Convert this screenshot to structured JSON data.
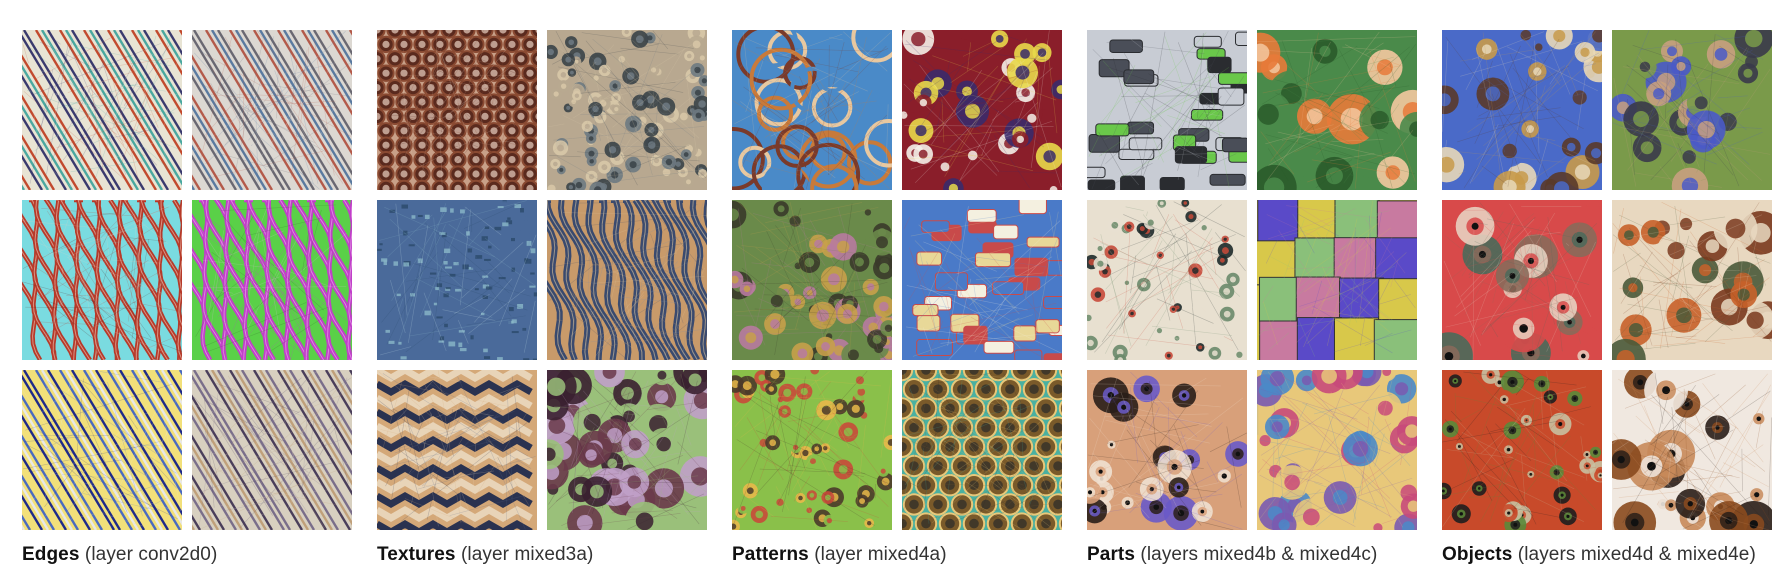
{
  "groups": [
    {
      "title": "Edges",
      "subtitle": "(layer conv2d0)",
      "tiles": [
        {
          "name": "edges-diagonal-rainbow-stripes",
          "style": "stripes",
          "colors": [
            "#3a3a6e",
            "#e8e4d4",
            "#c24a2e",
            "#4aa8a0"
          ]
        },
        {
          "name": "edges-fine-grey-stripes",
          "style": "stripes",
          "colors": [
            "#6a6872",
            "#dcd8d2",
            "#b45a4a",
            "#5a7aa0"
          ]
        },
        {
          "name": "edges-red-cyan-waves",
          "style": "waves",
          "colors": [
            "#b63a2a",
            "#7adbe0",
            "#5a1e18",
            "#f0d0c0"
          ]
        },
        {
          "name": "edges-magenta-green-waves",
          "style": "waves",
          "colors": [
            "#c040c8",
            "#5ad048",
            "#30602a",
            "#f0b0f0"
          ]
        },
        {
          "name": "edges-blue-yellow-stripes",
          "style": "stripes",
          "colors": [
            "#1e2a8a",
            "#f2e07a",
            "#4a6ac0",
            "#e8e8e8"
          ]
        },
        {
          "name": "edges-grey-purple-stripes",
          "style": "stripes",
          "colors": [
            "#7a6e8a",
            "#d8d0c0",
            "#4a3e5a",
            "#c0a07a"
          ]
        }
      ]
    },
    {
      "title": "Textures",
      "subtitle": "(layer mixed3a)",
      "tiles": [
        {
          "name": "textures-brown-mesh",
          "style": "cells",
          "colors": [
            "#5a2a1e",
            "#c8a088",
            "#8a4a32",
            "#e8d0c0"
          ]
        },
        {
          "name": "textures-grey-bumps",
          "style": "dots",
          "colors": [
            "#6e7a82",
            "#b8a890",
            "#3a4248",
            "#d8c8a8"
          ]
        },
        {
          "name": "textures-pale-blue-speckle",
          "style": "speckle",
          "colors": [
            "#cfe8ee",
            "#4a6a9a",
            "#8ab8c8",
            "#2a4a6a"
          ]
        },
        {
          "name": "textures-blue-ridges",
          "style": "ridges",
          "colors": [
            "#3a4a6e",
            "#c89a6a",
            "#7a8aa8",
            "#e0c8a0"
          ]
        },
        {
          "name": "textures-navy-tan-zigzag",
          "style": "zigzag",
          "colors": [
            "#2a3250",
            "#d4a878",
            "#5a6a8a",
            "#e8d4b8"
          ]
        },
        {
          "name": "textures-multicolor-blur",
          "style": "blobs",
          "colors": [
            "#6a3a4a",
            "#9ac07a",
            "#c0a0c8",
            "#3a2030"
          ]
        }
      ]
    },
    {
      "title": "Patterns",
      "subtitle": "(layer mixed4a)",
      "tiles": [
        {
          "name": "patterns-woven-loops",
          "style": "loops",
          "colors": [
            "#c87a3a",
            "#4a8ac8",
            "#e8c8a0",
            "#7a3a2a"
          ]
        },
        {
          "name": "patterns-flower-dots",
          "style": "flowers",
          "colors": [
            "#e8d84a",
            "#8a1e2a",
            "#3a2a6a",
            "#f4f0e8"
          ]
        },
        {
          "name": "patterns-bubble-cluster",
          "style": "bubbles",
          "colors": [
            "#c8a04a",
            "#6a8a4a",
            "#b87aa0",
            "#3a3a2a"
          ]
        },
        {
          "name": "patterns-paper-labels",
          "style": "labels",
          "colors": [
            "#e8d898",
            "#4a7ac8",
            "#c84a4a",
            "#f4f0e0"
          ]
        },
        {
          "name": "patterns-eyes-rings",
          "style": "rings",
          "colors": [
            "#4a3a2a",
            "#8ac04a",
            "#e8b84a",
            "#c84a3a"
          ]
        },
        {
          "name": "patterns-hex-cells",
          "style": "hex",
          "colors": [
            "#7a5a2a",
            "#4ab0a0",
            "#e8c87a",
            "#2a2a2a"
          ]
        }
      ]
    },
    {
      "title": "Parts",
      "subtitle": "(layers mixed4b & mixed4c)",
      "tiles": [
        {
          "name": "parts-gadget-buttons",
          "style": "buttons",
          "colors": [
            "#4a4e58",
            "#c8ccd4",
            "#2a2c30",
            "#6ac84a"
          ]
        },
        {
          "name": "parts-orange-flowers",
          "style": "petals",
          "colors": [
            "#e87a3a",
            "#4a8a4a",
            "#f4c8a0",
            "#2a5a2a"
          ]
        },
        {
          "name": "parts-bead-chains",
          "style": "beads",
          "colors": [
            "#1e2a2a",
            "#e8e0d0",
            "#c84a3a",
            "#6a8a6a"
          ]
        },
        {
          "name": "parts-fabric-patches",
          "style": "patches",
          "colors": [
            "#5a4ac8",
            "#d8c84a",
            "#8ac07a",
            "#c87aa0"
          ]
        },
        {
          "name": "parts-animal-noses",
          "style": "noses",
          "colors": [
            "#2a1e18",
            "#d8a07a",
            "#6a5ac8",
            "#f0e0d0"
          ]
        },
        {
          "name": "parts-glass-spheres",
          "style": "spheres",
          "colors": [
            "#7a5ab0",
            "#e8c87a",
            "#4a8ac8",
            "#c84a7a"
          ]
        }
      ]
    },
    {
      "title": "Objects",
      "subtitle": "(layers mixed4d & mixed4e)",
      "tiles": [
        {
          "name": "objects-towers",
          "style": "towers",
          "colors": [
            "#c89a4a",
            "#4a6ac8",
            "#e8d8b8",
            "#5a3a2a"
          ]
        },
        {
          "name": "objects-legs-shorts",
          "style": "legs",
          "colors": [
            "#4a5ac8",
            "#7a9a4a",
            "#c8a080",
            "#3a3a4a"
          ]
        },
        {
          "name": "objects-faces-eyes",
          "style": "faces",
          "colors": [
            "#8a6a5a",
            "#d84a4a",
            "#4a6a5a",
            "#e8d0c0"
          ]
        },
        {
          "name": "objects-food-bowls",
          "style": "bowls",
          "colors": [
            "#c8622a",
            "#e8d8c0",
            "#4a5a3a",
            "#7a3a1e"
          ]
        },
        {
          "name": "objects-green-spiders",
          "style": "spiders",
          "colors": [
            "#5a8a3a",
            "#c84a2a",
            "#1e1e1e",
            "#c8c0a0"
          ]
        },
        {
          "name": "objects-dog-faces",
          "style": "dogs",
          "colors": [
            "#8a4a1e",
            "#f0e8e0",
            "#2a1e18",
            "#c88a5a"
          ]
        }
      ]
    }
  ]
}
